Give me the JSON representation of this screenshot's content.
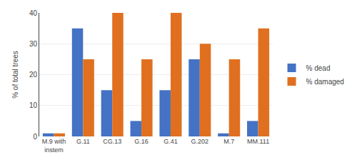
{
  "chart_data": {
    "type": "bar",
    "ylabel": "% of total trees",
    "categories": [
      "M.9 with\ninstem",
      "G.11",
      "CG.13",
      "G.16",
      "G.41",
      "G.202",
      "M.7",
      "MM.111"
    ],
    "series": [
      {
        "name": "% dead",
        "color": "#4472C4",
        "values": [
          1,
          35,
          15,
          5,
          15,
          25,
          1,
          5
        ]
      },
      {
        "name": "% damaged",
        "color": "#E07020",
        "values": [
          1,
          25,
          40,
          25,
          40,
          30,
          25,
          35
        ]
      }
    ],
    "ylim": [
      0,
      40
    ],
    "yticks": [
      0,
      10,
      20,
      30,
      40
    ],
    "grid": true,
    "legend": "right"
  }
}
